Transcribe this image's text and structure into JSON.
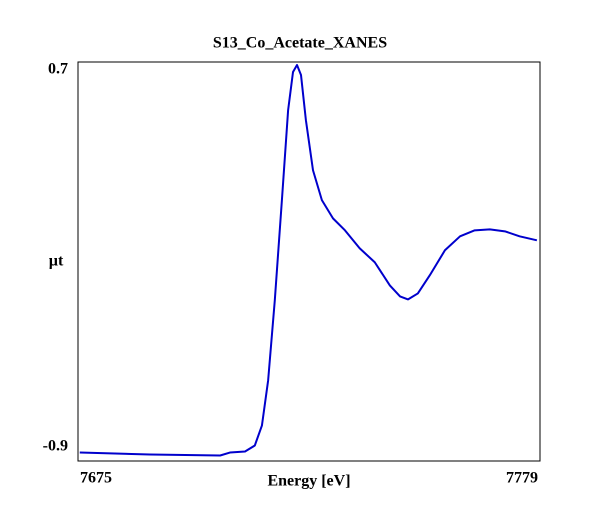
{
  "chart_data": {
    "type": "line",
    "title": "S13_Co_Acetate_XANES",
    "x_label": "Energy [eV]",
    "y_label": "µt",
    "xlim": [
      7675,
      7779
    ],
    "ylim": [
      -0.9,
      0.7
    ],
    "xticks": [
      7675,
      7779
    ],
    "yticks": [
      -0.9,
      0.7
    ],
    "series": [
      {
        "color": "#0000cc",
        "x": [
          7675.4,
          7691.2,
          7707.0,
          7709.2,
          7712.6,
          7714.8,
          7716.4,
          7717.8,
          7719.3,
          7720.9,
          7722.3,
          7723.4,
          7724.3,
          7725.2,
          7726.3,
          7727.9,
          7729.9,
          7732.4,
          7735.1,
          7738.4,
          7741.8,
          7745.2,
          7747.5,
          7749.3,
          7751.5,
          7754.2,
          7757.6,
          7761.0,
          7764.3,
          7767.7,
          7771.1,
          7774.4,
          7778.3
        ],
        "values": [
          -0.866,
          -0.874,
          -0.878,
          -0.866,
          -0.862,
          -0.838,
          -0.758,
          -0.577,
          -0.256,
          0.146,
          0.507,
          0.66,
          0.688,
          0.648,
          0.467,
          0.266,
          0.146,
          0.073,
          0.025,
          -0.047,
          -0.103,
          -0.196,
          -0.24,
          -0.252,
          -0.228,
          -0.155,
          -0.055,
          0.001,
          0.025,
          0.029,
          0.021,
          0.001,
          -0.015
        ]
      }
    ]
  }
}
